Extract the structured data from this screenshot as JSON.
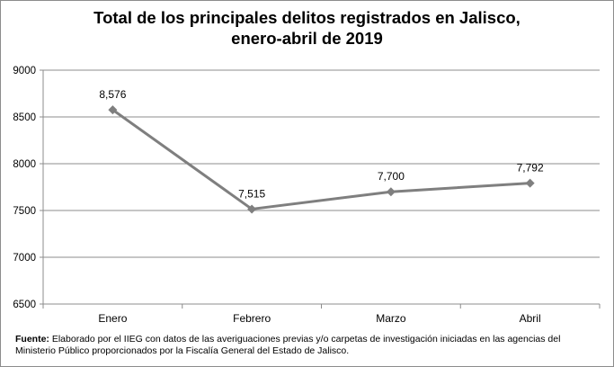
{
  "chart_data": {
    "type": "line",
    "title_line1": "Total de los principales delitos registrados en Jalisco,",
    "title_line2": "enero-abril de 2019",
    "categories": [
      "Enero",
      "Febrero",
      "Marzo",
      "Abril"
    ],
    "series": [
      {
        "values": [
          8576,
          7515,
          7700,
          7792
        ],
        "labels": [
          "8,576",
          "7,515",
          "7,700",
          "7,792"
        ]
      }
    ],
    "yticks": [
      "6500",
      "7000",
      "7500",
      "8000",
      "8500",
      "9000"
    ],
    "ylim": [
      6500,
      9000
    ],
    "grid": true,
    "legend": "none",
    "line_color": "#7f7f7f",
    "grid_color": "#8c8c8c"
  },
  "source": {
    "label": "Fuente:",
    "text": " Elaborado por el IIEG  con datos de las averiguaciones previas y/o carpetas de investigación iniciadas en las agencias del Ministerio Público proporcionados por la Fiscalía General del Estado de Jalisco."
  }
}
